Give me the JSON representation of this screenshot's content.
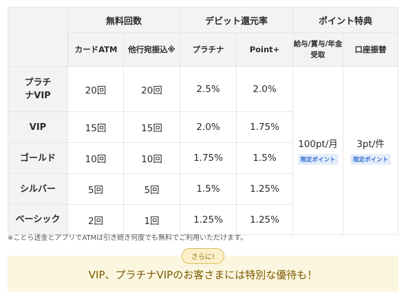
{
  "headers": {
    "free_count": "無料回数",
    "debit_rate": "デビット還元率",
    "point_benefit": "ポイント特典"
  },
  "subheaders": {
    "card_atm": "カードATM",
    "other_bank": "他行宛振込※",
    "platinum": "プラチナ",
    "point_plus": "Point+",
    "salary": "給与/賞与/年金受取",
    "transfer": "口座振替"
  },
  "rows": [
    {
      "tier": "プラチナVIP",
      "atm": "20回",
      "bank": "20回",
      "platinum": "2.5%",
      "point_plus": "2.0%"
    },
    {
      "tier": "VIP",
      "atm": "15回",
      "bank": "15回",
      "platinum": "2.0%",
      "point_plus": "1.75%"
    },
    {
      "tier": "ゴールド",
      "atm": "10回",
      "bank": "10回",
      "platinum": "1.75%",
      "point_plus": "1.5%"
    },
    {
      "tier": "シルバー",
      "atm": "5回",
      "bank": "5回",
      "platinum": "1.5%",
      "point_plus": "1.25%"
    },
    {
      "tier": "ベーシック",
      "atm": "2回",
      "bank": "1回",
      "platinum": "1.25%",
      "point_plus": "1.25%"
    }
  ],
  "points": {
    "salary_value": "100pt/月",
    "transfer_value": "3pt/件",
    "limited_label": "限定ポイント"
  },
  "note": "※ことら送金とアプリでATMは引き続き何度でも無料でご利用いただけます。",
  "promo": {
    "badge": "さらに!",
    "text": "VIP、プラチナVIPのお客さまには特別な優待も！"
  },
  "colors": {
    "header_bg": "#f3f3f3",
    "badge_blue": "#2f6ed3",
    "promo_bg": "#fbf6df",
    "promo_text": "#7a5a00"
  }
}
